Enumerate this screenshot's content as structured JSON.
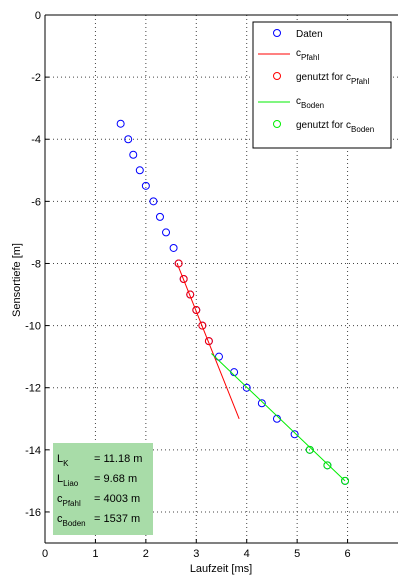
{
  "chart_data": {
    "type": "scatter",
    "title": "",
    "xlabel": "Laufzeit [ms]",
    "ylabel": "Sensortiefe [m]",
    "xlim": [
      0,
      7
    ],
    "ylim": [
      -17,
      0
    ],
    "x_ticks": [
      0,
      1,
      2,
      3,
      4,
      5,
      6
    ],
    "y_ticks": [
      0,
      -2,
      -4,
      -6,
      -8,
      -10,
      -12,
      -14,
      -16
    ],
    "grid": true,
    "legend_position": "top-right",
    "series": [
      {
        "name": "Daten",
        "kind": "markers",
        "color": "#0000ff",
        "points": [
          [
            1.5,
            -3.5
          ],
          [
            1.65,
            -4.0
          ],
          [
            1.75,
            -4.5
          ],
          [
            1.88,
            -5.0
          ],
          [
            2.0,
            -5.5
          ],
          [
            2.15,
            -6.0
          ],
          [
            2.28,
            -6.5
          ],
          [
            2.4,
            -7.0
          ],
          [
            2.55,
            -7.5
          ],
          [
            2.65,
            -8.0
          ],
          [
            2.75,
            -8.5
          ],
          [
            2.88,
            -9.0
          ],
          [
            3.0,
            -9.5
          ],
          [
            3.12,
            -10.0
          ],
          [
            3.25,
            -10.5
          ],
          [
            3.45,
            -11.0
          ],
          [
            3.75,
            -11.5
          ],
          [
            4.0,
            -12.0
          ],
          [
            4.3,
            -12.5
          ],
          [
            4.6,
            -13.0
          ],
          [
            4.95,
            -13.5
          ],
          [
            5.25,
            -14.0
          ],
          [
            5.6,
            -14.5
          ],
          [
            5.95,
            -15.0
          ]
        ]
      },
      {
        "name": "c_Pfahl",
        "legend_main": "c",
        "legend_sub": "Pfahl",
        "kind": "line",
        "color": "#ff0000",
        "points": [
          [
            2.62,
            -8.0
          ],
          [
            3.85,
            -13.0
          ]
        ]
      },
      {
        "name": "genutzt for c_Pfahl",
        "legend_main": "genutzt for c",
        "legend_sub": "Pfahl",
        "kind": "markers",
        "color": "#ff0000",
        "points": [
          [
            2.65,
            -8.0
          ],
          [
            2.75,
            -8.5
          ],
          [
            2.88,
            -9.0
          ],
          [
            3.0,
            -9.5
          ],
          [
            3.12,
            -10.0
          ],
          [
            3.25,
            -10.5
          ]
        ]
      },
      {
        "name": "c_Boden",
        "legend_main": "c",
        "legend_sub": "Boden",
        "kind": "line",
        "color": "#00ee00",
        "points": [
          [
            3.3,
            -10.9
          ],
          [
            5.95,
            -15.0
          ]
        ]
      },
      {
        "name": "genutzt for c_Boden",
        "legend_main": "genutzt for c",
        "legend_sub": "Boden",
        "kind": "markers",
        "color": "#00ee00",
        "points": [
          [
            5.25,
            -14.0
          ],
          [
            5.6,
            -14.5
          ],
          [
            5.95,
            -15.0
          ]
        ]
      }
    ],
    "annotation_box": {
      "background": "#a8dca8",
      "lines": [
        {
          "main": "L",
          "sub": "K",
          "value": "= 11.18 m"
        },
        {
          "main": "L",
          "sub": "Liao",
          "value": "= 9.68 m"
        },
        {
          "main": "c",
          "sub": "Pfahl",
          "value": "= 4003 m"
        },
        {
          "main": "c",
          "sub": "Boden",
          "value": "= 1537 m"
        }
      ]
    }
  }
}
